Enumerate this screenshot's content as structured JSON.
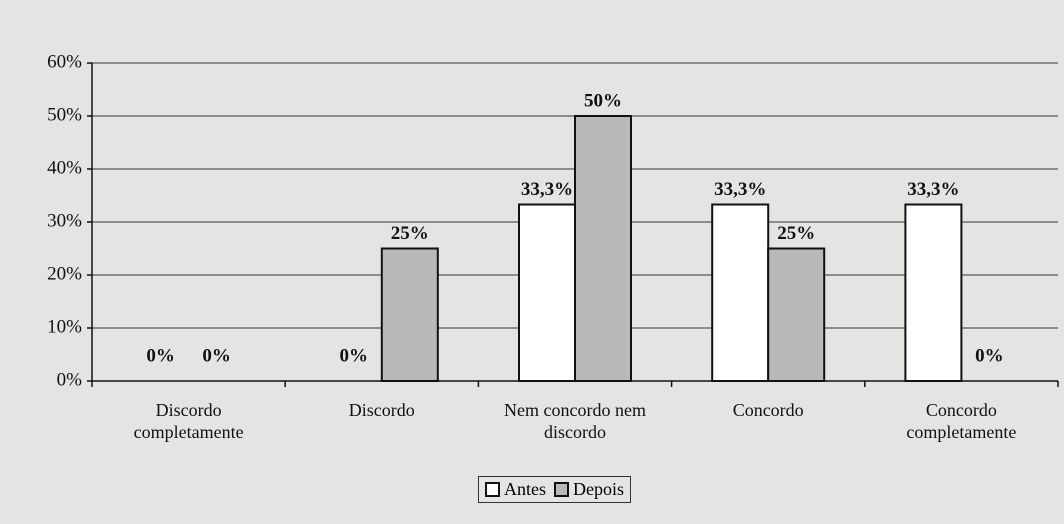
{
  "chart_data": {
    "type": "bar",
    "categories": [
      "Discordo completamente",
      "Discordo",
      "Nem concordo nem discordo",
      "Concordo",
      "Concordo completamente"
    ],
    "series": [
      {
        "name": "Antes",
        "color": "#ffffff",
        "values": [
          0,
          0,
          33.3,
          33.3,
          33.3
        ],
        "value_labels": [
          "0%",
          "0%",
          "33,3%",
          "33,3%",
          "33,3%"
        ]
      },
      {
        "name": "Depois",
        "color": "#b9b9b7",
        "values": [
          0,
          25,
          50,
          25,
          0
        ],
        "value_labels": [
          "0%",
          "25%",
          "50%",
          "25%",
          "0%"
        ]
      }
    ],
    "ylim": [
      0,
      60
    ],
    "yticks": [
      {
        "value": 0,
        "label": "0%"
      },
      {
        "value": 10,
        "label": "10%"
      },
      {
        "value": 20,
        "label": "20%"
      },
      {
        "value": 30,
        "label": "30%"
      },
      {
        "value": 40,
        "label": "40%"
      },
      {
        "value": 50,
        "label": "50%"
      },
      {
        "value": 60,
        "label": "60%"
      }
    ],
    "grid": true,
    "legend": "bottom"
  }
}
